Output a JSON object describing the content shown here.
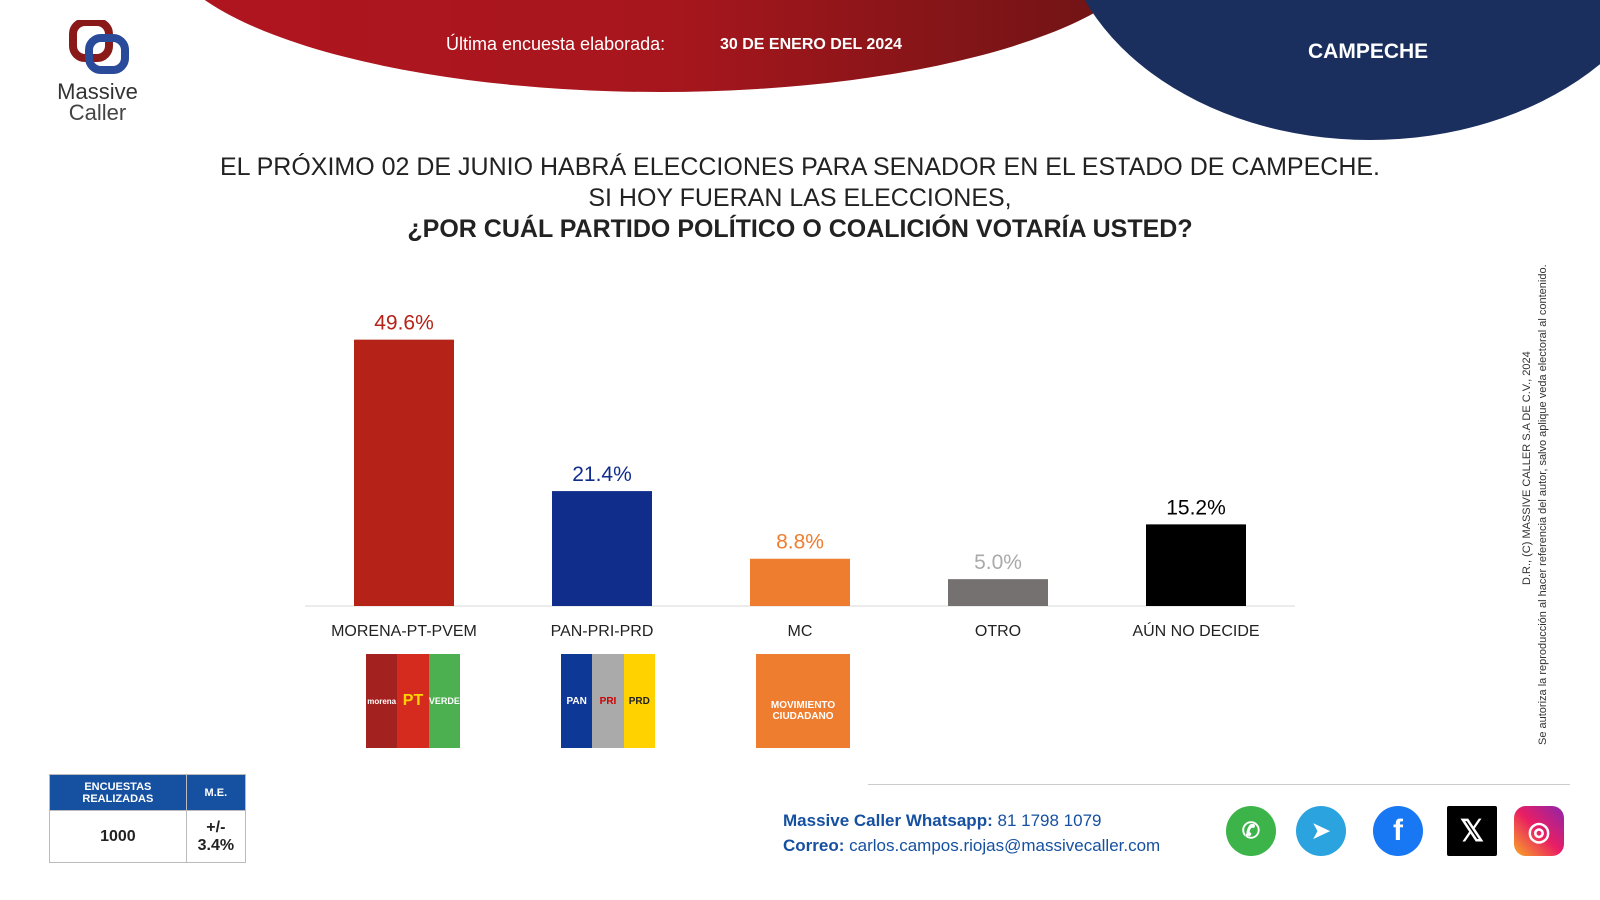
{
  "header": {
    "survey_label": "Última encuesta elaborada:",
    "survey_date": "30 DE ENERO DEL 2024",
    "state": "CAMPECHE"
  },
  "logo": {
    "line1": "Massive",
    "line2": "Caller"
  },
  "question": {
    "line1": "EL PRÓXIMO 02 DE JUNIO HABRÁ ELECCIONES PARA SENADOR EN EL ESTADO DE CAMPECHE.",
    "line2": "SI HOY FUERAN LAS ELECCIONES,",
    "line3": "¿POR CUÁL PARTIDO POLÍTICO O COALICIÓN VOTARÍA USTED?"
  },
  "chart_data": {
    "type": "bar",
    "categories": [
      "MORENA-PT-PVEM",
      "PAN-PRI-PRD",
      "MC",
      "OTRO",
      "AÚN NO DECIDE"
    ],
    "values": [
      49.6,
      21.4,
      8.8,
      5.0,
      15.2
    ],
    "data_labels": [
      "49.6%",
      "21.4%",
      "8.8%",
      "5.0%",
      "15.2%"
    ],
    "colors": [
      "#b52318",
      "#112d8c",
      "#ee7d2f",
      "#767171",
      "#000000"
    ],
    "ylim": [
      0,
      50
    ],
    "grid": false
  },
  "party_logos": {
    "morena": [
      "morena",
      "PT",
      "VERDE"
    ],
    "pan": [
      "PAN",
      "PRI",
      "PRD"
    ],
    "mc": [
      "MOVIMIENTO",
      "CIUDADANO"
    ]
  },
  "table": {
    "headers": [
      "ENCUESTAS REALIZADAS",
      "M.E."
    ],
    "values": [
      "1000",
      "+/- 3.4%"
    ]
  },
  "contact": {
    "whatsapp_label": "Massive Caller Whatsapp:",
    "whatsapp": "81 1798 1079",
    "email_label": "Correo:",
    "email": "carlos.campos.riojas@massivecaller.com"
  },
  "social": [
    "whatsapp-icon",
    "telegram-icon",
    "facebook-icon",
    "x-icon",
    "instagram-icon"
  ],
  "legal": {
    "line1": "D.R., (C) MASSIVE CALLER S.A DE C.V., 2024",
    "line2": "Se autoriza la reproducción al hacer referencia del autor, salvo aplique veda electoral al contenido."
  }
}
